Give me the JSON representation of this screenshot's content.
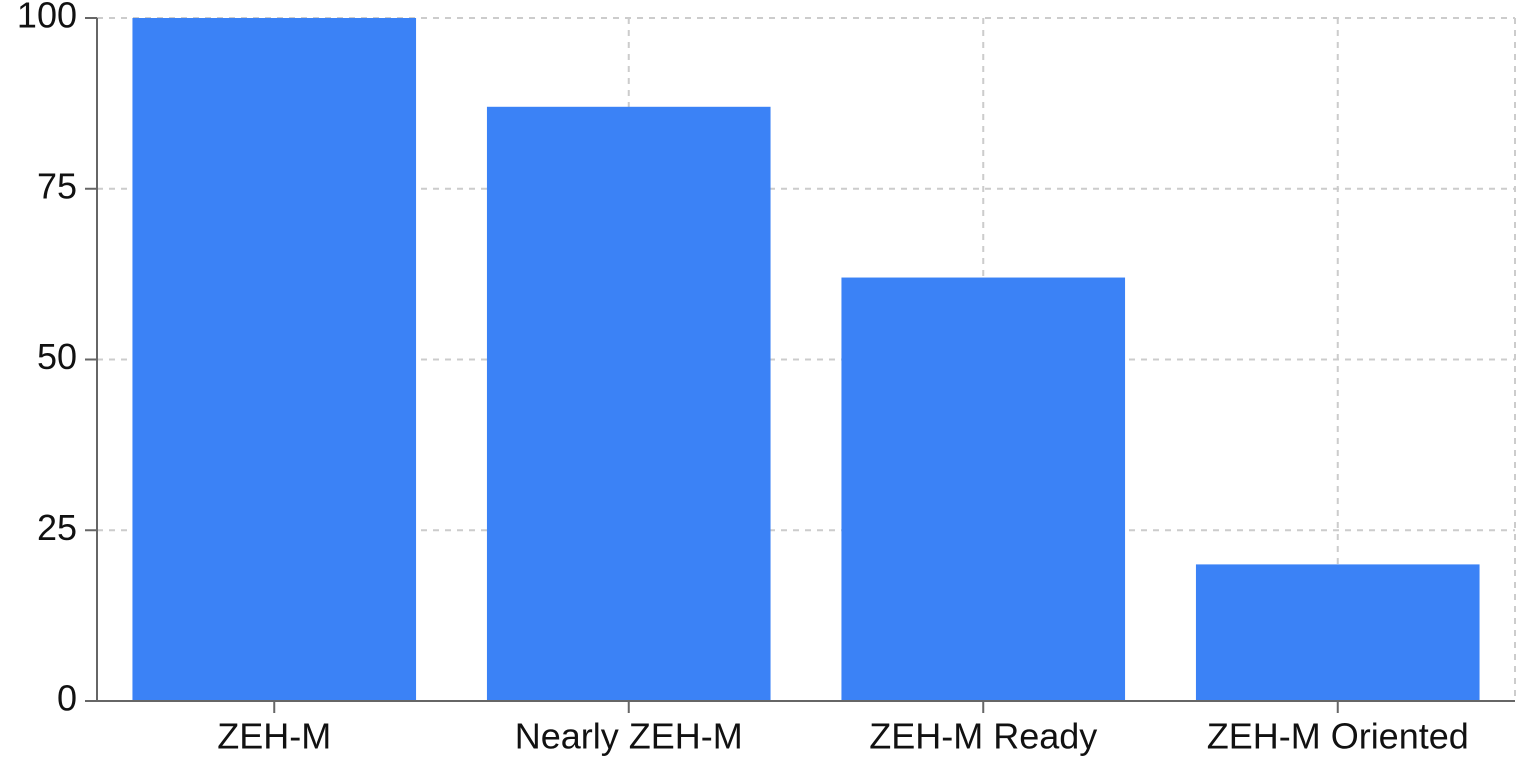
{
  "chart_data": {
    "type": "bar",
    "categories": [
      "ZEH-M",
      "Nearly ZEH-M",
      "ZEH-M Ready",
      "ZEH-M Oriented"
    ],
    "values": [
      100,
      87,
      62,
      20
    ],
    "color": "#3b82f6",
    "ylim": [
      0,
      100
    ],
    "yticks": [
      0,
      25,
      50,
      75,
      100
    ],
    "grid": true
  }
}
